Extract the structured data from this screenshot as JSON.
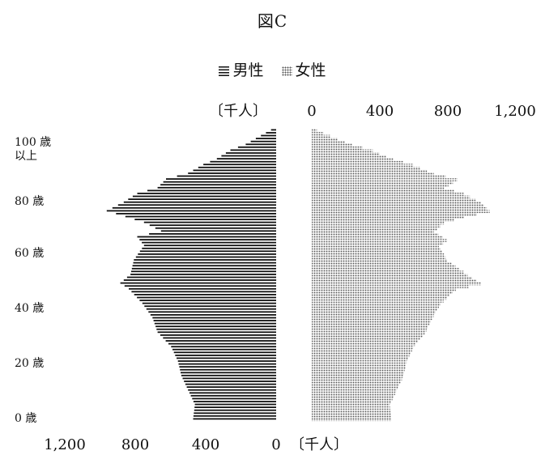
{
  "chart_data": {
    "type": "bar",
    "title": "図C",
    "unit_label": "〔千人〕",
    "legend": {
      "male": "男性",
      "female": "女性"
    },
    "xlim": [
      0,
      1200
    ],
    "x_ticks_top": [
      "0",
      "400",
      "800",
      "1,200"
    ],
    "x_ticks_bottom": [
      "1,200",
      "800",
      "400",
      "0"
    ],
    "y_labels": [
      {
        "age": 0,
        "label": "0 歳"
      },
      {
        "age": 20,
        "label": "20 歳"
      },
      {
        "age": 40,
        "label": "40 歳"
      },
      {
        "age": 60,
        "label": "60 歳"
      },
      {
        "age": 80,
        "label": "80 歳"
      },
      {
        "age": 100,
        "label": "100 歳 以上"
      }
    ],
    "series": [
      {
        "name": "男性",
        "ages": [
          0,
          5,
          10,
          15,
          20,
          25,
          30,
          35,
          40,
          45,
          47,
          50,
          55,
          60,
          63,
          65,
          68,
          70,
          72,
          75,
          78,
          80,
          83,
          85,
          88,
          90,
          93,
          95,
          98,
          100
        ],
        "values": [
          490,
          480,
          520,
          560,
          580,
          620,
          700,
          730,
          790,
          870,
          920,
          860,
          840,
          780,
          820,
          680,
          780,
          890,
          1000,
          900,
          820,
          700,
          650,
          520,
          430,
          350,
          270,
          180,
          90,
          30
        ]
      },
      {
        "name": "女性",
        "ages": [
          0,
          5,
          10,
          15,
          20,
          25,
          30,
          35,
          40,
          45,
          47,
          50,
          55,
          60,
          62,
          65,
          68,
          70,
          72,
          75,
          78,
          80,
          83,
          85,
          88,
          90,
          93,
          95,
          98,
          100
        ],
        "values": [
          470,
          460,
          500,
          540,
          560,
          600,
          670,
          710,
          760,
          850,
          1000,
          920,
          800,
          750,
          800,
          720,
          780,
          900,
          1050,
          1000,
          900,
          780,
          860,
          720,
          600,
          480,
          360,
          240,
          110,
          30
        ]
      }
    ]
  }
}
